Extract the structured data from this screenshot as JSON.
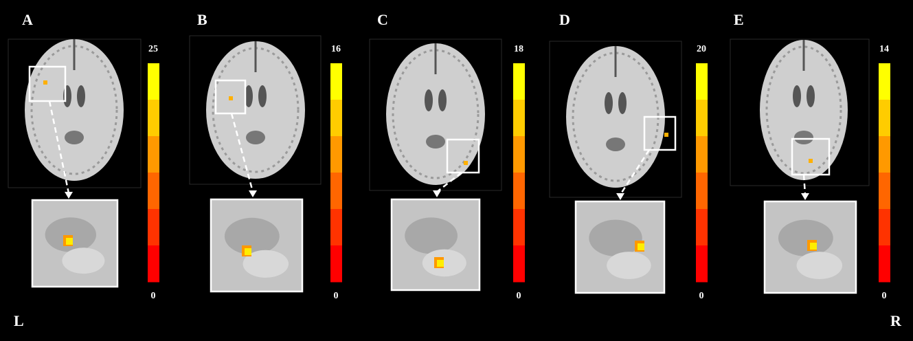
{
  "panels": [
    {
      "label": "A",
      "max": "25",
      "min": "0"
    },
    {
      "label": "B",
      "max": "16",
      "min": "0"
    },
    {
      "label": "C",
      "max": "18",
      "min": "0"
    },
    {
      "label": "D",
      "max": "20",
      "min": "0"
    },
    {
      "label": "E",
      "max": "14",
      "min": "0"
    }
  ],
  "colorbar_colors": [
    "#ffff00",
    "#ffcc00",
    "#ff9900",
    "#ff6600",
    "#ff3300",
    "#ff0000"
  ],
  "side_labels": {
    "left": "L",
    "right": "R"
  }
}
